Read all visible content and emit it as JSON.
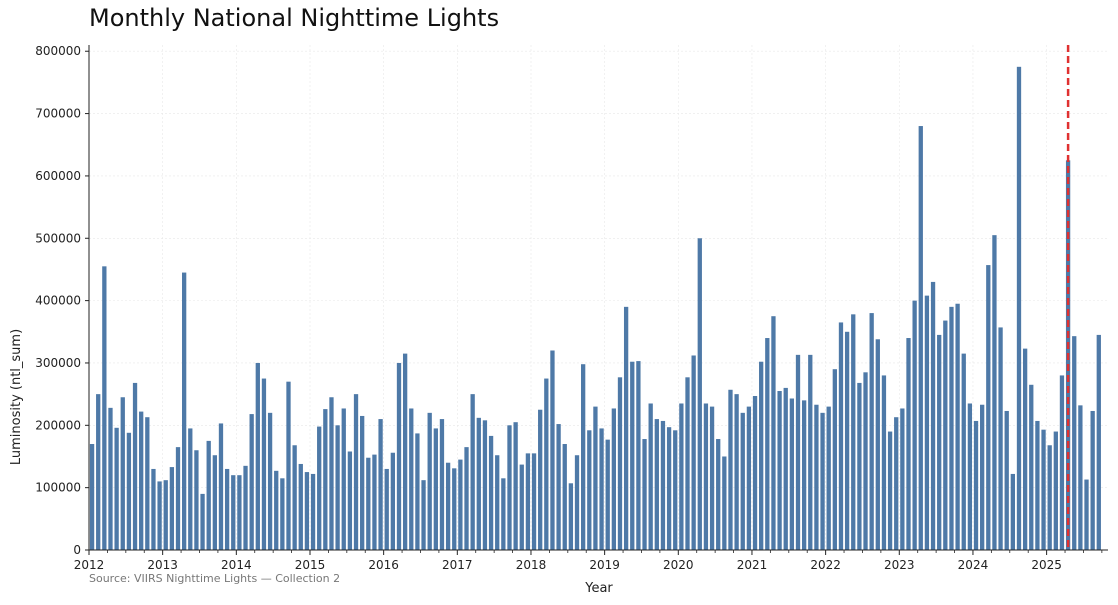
{
  "colors": {
    "bar": "#4e79a7",
    "marker": "#e03131",
    "grid": "#e8e8e8",
    "axis": "#222222"
  },
  "source": "Source: VIIRS Nighttime Lights — Collection 2",
  "chart_data": {
    "type": "bar",
    "title": "Monthly National Nighttime Lights",
    "xlabel": "Year",
    "ylabel": "Luminosity (ntl_sum)",
    "ylim": [
      0,
      810000
    ],
    "yticks": [
      0,
      100000,
      200000,
      300000,
      400000,
      500000,
      600000,
      700000,
      800000
    ],
    "xlim": [
      "2012-01",
      "2025-10"
    ],
    "year_ticks": [
      "2012",
      "2013",
      "2014",
      "2015",
      "2016",
      "2017",
      "2018",
      "2019",
      "2020",
      "2021",
      "2022",
      "2023",
      "2024",
      "2025"
    ],
    "grid": true,
    "marker_line": {
      "x": "2025-04",
      "style": "dashed"
    },
    "series": [
      {
        "start": "2012-01",
        "values": [
          170000,
          250000,
          455000,
          228000,
          196000,
          245000,
          188000,
          268000,
          222000,
          213000,
          130000,
          110000,
          112000,
          133000,
          165000,
          445000,
          195000,
          160000,
          90000,
          175000,
          152000,
          203000,
          130000,
          120000,
          120000,
          135000,
          218000,
          300000,
          275000,
          220000,
          127000,
          115000,
          270000,
          168000,
          138000,
          125000,
          122000,
          198000,
          226000,
          245000,
          200000,
          227000,
          158000,
          250000,
          215000,
          148000,
          153000,
          210000,
          130000,
          156000,
          300000,
          315000,
          227000,
          187000,
          112000,
          220000,
          195000,
          210000,
          140000,
          131000,
          145000,
          165000,
          250000,
          212000,
          208000,
          183000,
          152000,
          115000,
          200000,
          205000,
          137000,
          155000,
          155000,
          225000,
          275000,
          320000,
          202000,
          170000,
          107000,
          152000,
          298000,
          192000,
          230000,
          195000,
          177000,
          227000,
          277000,
          390000,
          302000,
          303000,
          178000,
          235000,
          210000,
          207000,
          197000,
          192000,
          235000,
          277000,
          312000,
          500000,
          235000,
          230000,
          178000,
          150000,
          257000,
          250000,
          220000,
          230000,
          247000,
          302000,
          340000,
          375000,
          255000,
          260000,
          243000,
          313000,
          240000,
          313000,
          233000,
          220000,
          230000,
          290000,
          365000,
          350000,
          378000,
          268000,
          285000,
          380000,
          338000,
          280000,
          190000,
          213000,
          227000,
          340000,
          400000,
          680000,
          408000,
          430000,
          345000,
          368000,
          390000,
          395000,
          315000,
          235000,
          207000,
          233000,
          457000,
          505000,
          357000,
          223000,
          122000,
          775000,
          323000,
          265000,
          207000,
          193000,
          168000,
          190000,
          280000,
          625000,
          343000,
          232000,
          113000,
          223000,
          345000
        ]
      }
    ]
  }
}
